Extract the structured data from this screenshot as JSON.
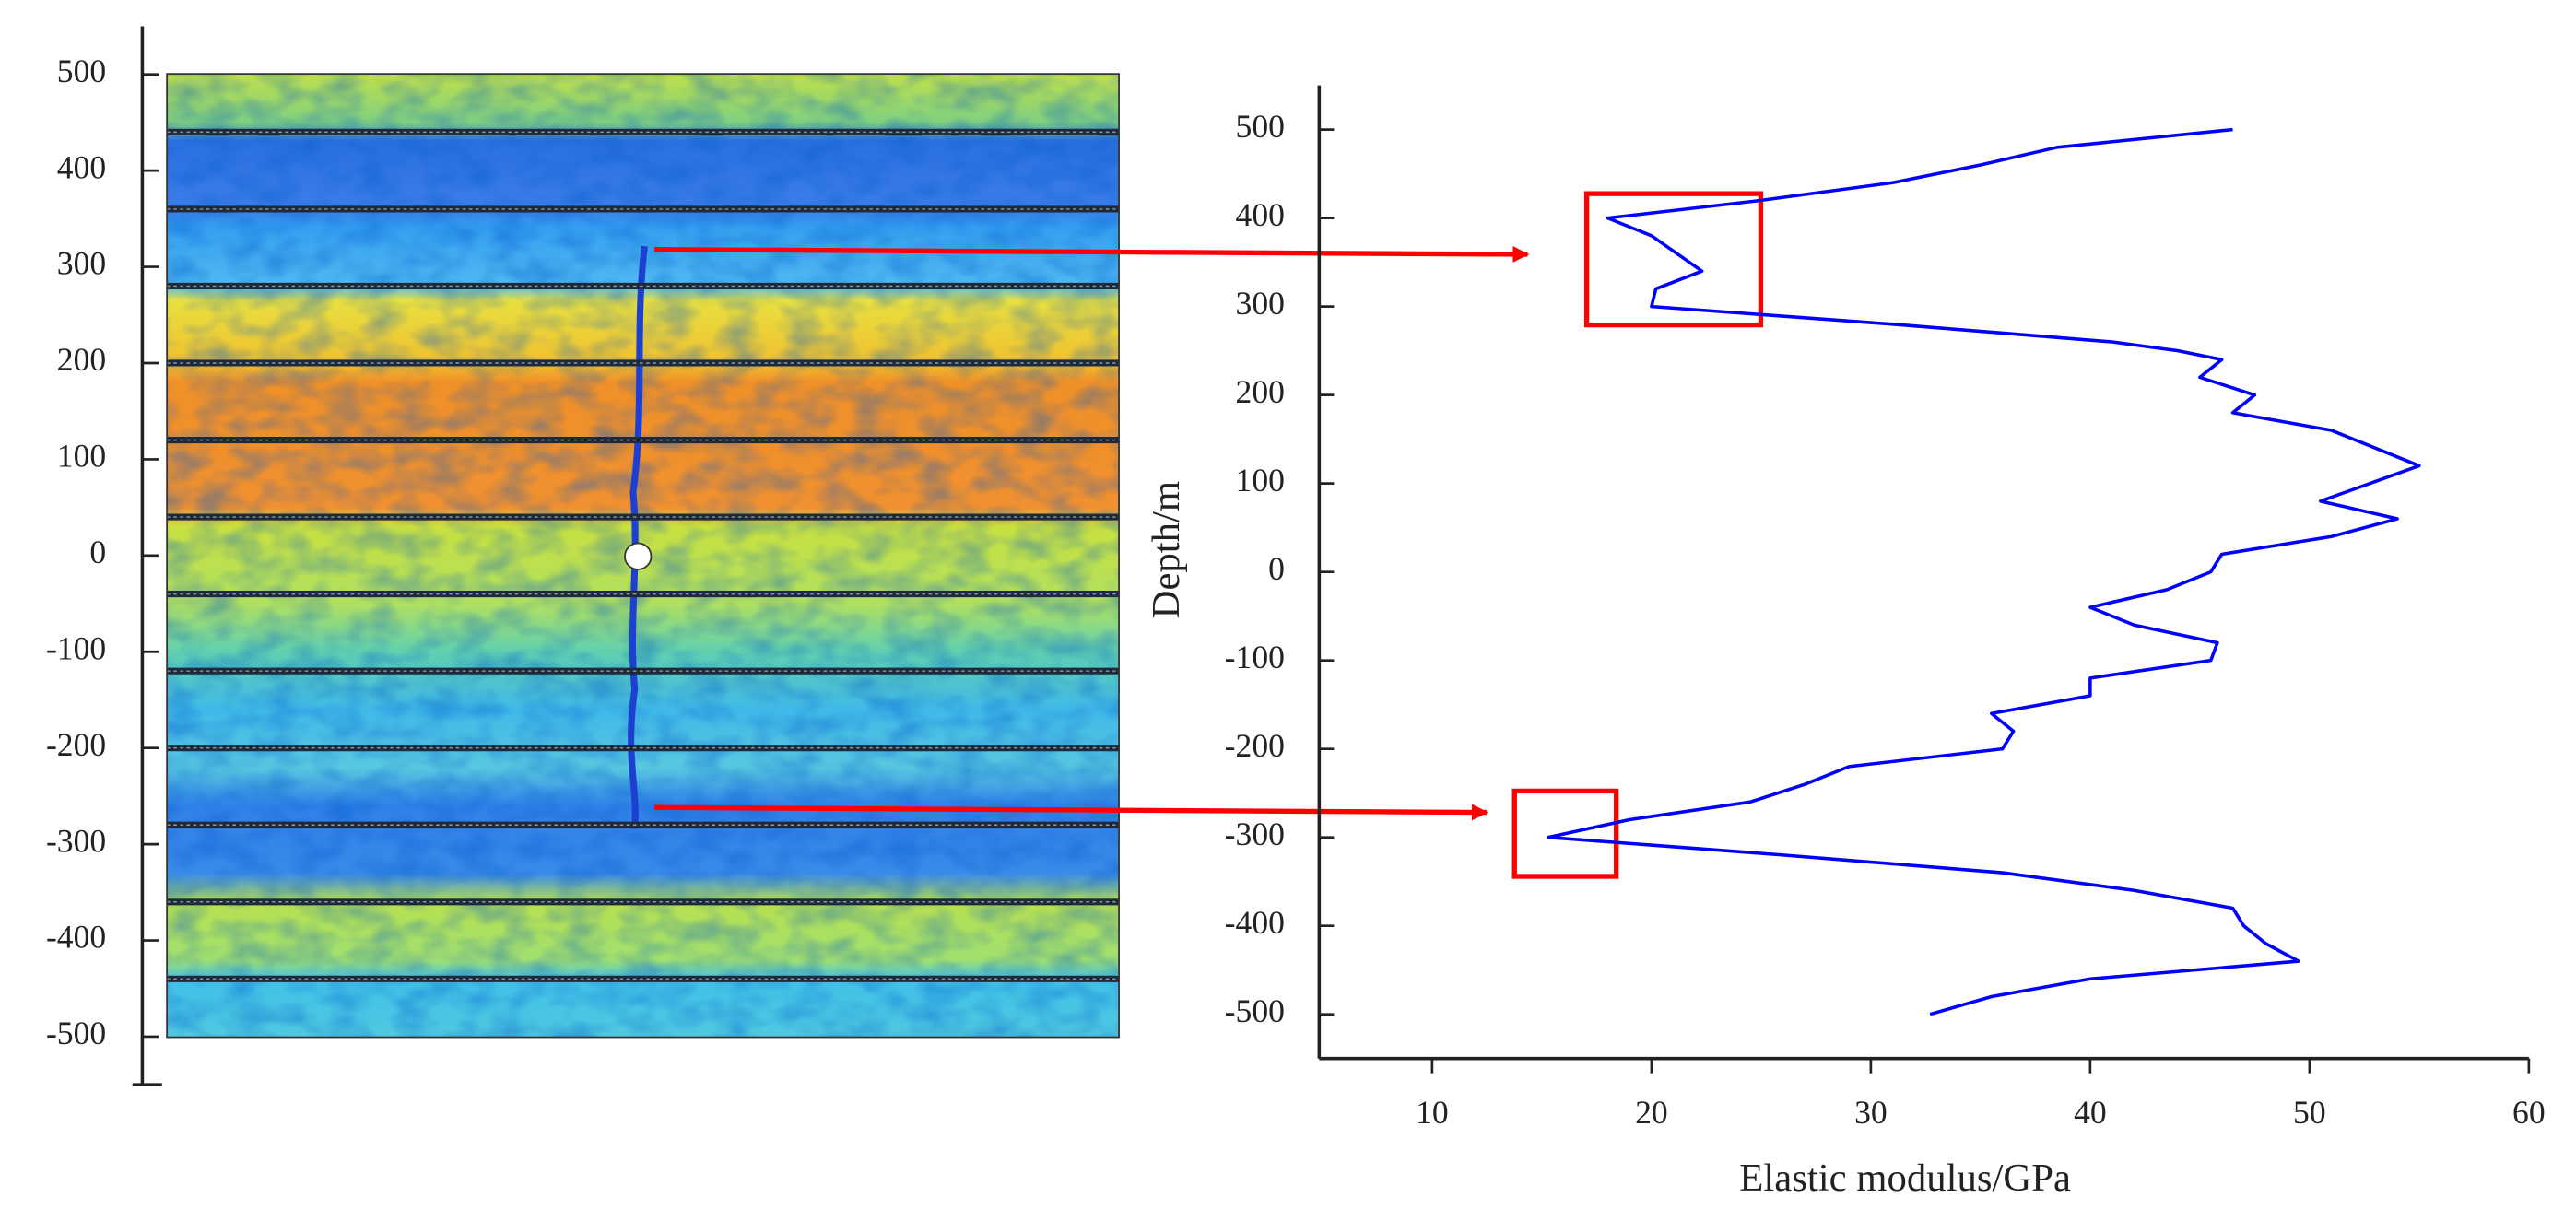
{
  "chart_data": [
    {
      "type": "image",
      "ylim": [
        -550,
        550
      ],
      "yticks": [
        -500,
        -400,
        -300,
        -200,
        -100,
        0,
        100,
        200,
        300,
        400,
        500
      ],
      "boundaries": [
        440,
        360,
        280,
        200,
        120,
        40,
        -40,
        -120,
        -200,
        -280,
        -360,
        -440
      ]
    },
    {
      "type": "line",
      "xlabel": "Elastic modulus/GPa",
      "ylabel": "Depth/m",
      "xlim": [
        5,
        60
      ],
      "xticks": [
        10,
        20,
        30,
        40,
        50,
        60
      ],
      "ylim": [
        -550,
        550
      ],
      "yticks": [
        -500,
        -400,
        -300,
        -200,
        -100,
        0,
        100,
        200,
        300,
        400,
        500
      ],
      "y": [
        500,
        480,
        460,
        440,
        420,
        400,
        380,
        340,
        320,
        300,
        280,
        260,
        250,
        240,
        220,
        200,
        180,
        160,
        120,
        80,
        60,
        40,
        20,
        0,
        -20,
        -40,
        -60,
        -80,
        -100,
        -120,
        -140,
        -160,
        -180,
        -200,
        -220,
        -240,
        -260,
        -280,
        -300,
        -320,
        -340,
        -360,
        -380,
        -400,
        -420,
        -440,
        -460,
        -480,
        -500
      ],
      "series": [
        {
          "color": "#0000ff",
          "values": [
            46.5,
            38.5,
            35,
            31,
            25,
            18,
            20,
            22.3,
            20.2,
            20,
            31,
            41,
            44,
            46,
            45,
            47.5,
            46.5,
            51,
            55,
            50.5,
            54,
            51,
            46,
            45.5,
            43.5,
            40,
            42,
            45.8,
            45.5,
            40,
            40,
            35.5,
            36.5,
            36,
            29,
            27,
            24.5,
            19,
            15.3,
            26,
            36,
            42,
            46.5,
            47,
            48,
            49.5,
            40,
            35.5,
            32.7
          ]
        }
      ]
    }
  ]
}
